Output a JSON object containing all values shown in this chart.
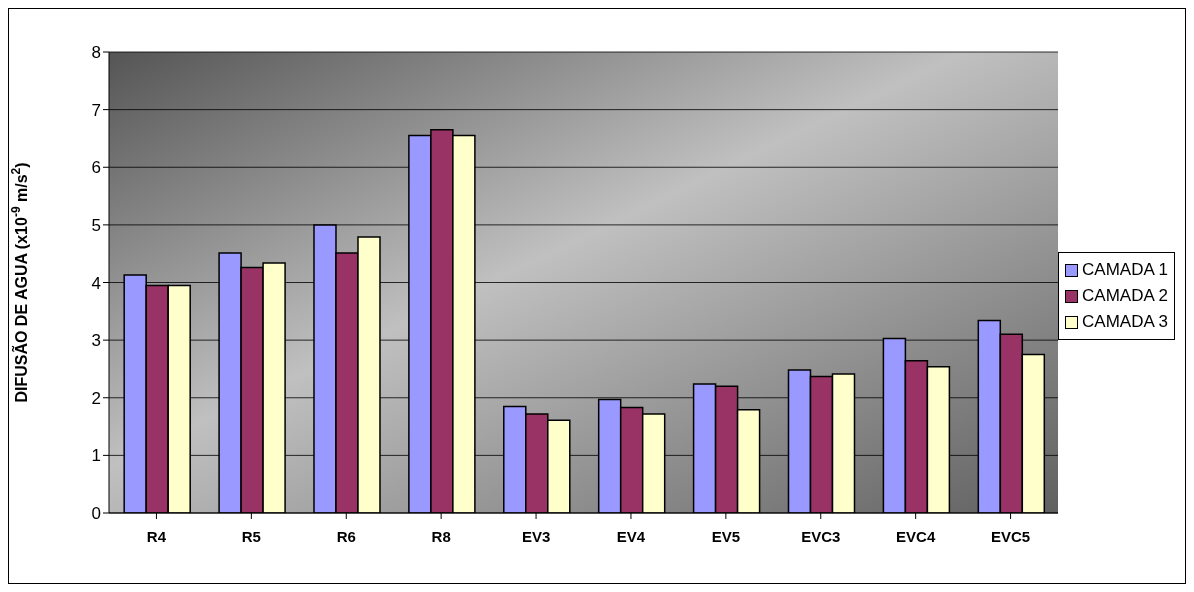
{
  "chart_data": {
    "type": "bar",
    "ylabel": "DIFUSÃO DE AGUA (x10$^{-9}$ m/s$^{2}$)",
    "categories": [
      "R4",
      "R5",
      "R6",
      "R8",
      "EV3",
      "EV4",
      "EV5",
      "EVC3",
      "EVC4",
      "EVC5"
    ],
    "series": [
      {
        "name": "CAMADA 1",
        "color": "#9999ff",
        "values": [
          4.13,
          4.51,
          5.0,
          6.55,
          1.85,
          1.97,
          2.24,
          2.48,
          3.03,
          3.34
        ]
      },
      {
        "name": "CAMADA 2",
        "color": "#993366",
        "values": [
          3.95,
          4.26,
          4.51,
          6.65,
          1.72,
          1.83,
          2.2,
          2.37,
          2.64,
          3.1
        ]
      },
      {
        "name": "CAMADA 3",
        "color": "#ffffcc",
        "values": [
          3.95,
          4.34,
          4.79,
          6.55,
          1.61,
          1.72,
          1.79,
          2.41,
          2.54,
          2.75
        ]
      }
    ],
    "ylim": [
      0,
      8
    ],
    "yticks": [
      0,
      1,
      2,
      3,
      4,
      5,
      6,
      7,
      8
    ],
    "grid": "y",
    "legend": "right"
  }
}
